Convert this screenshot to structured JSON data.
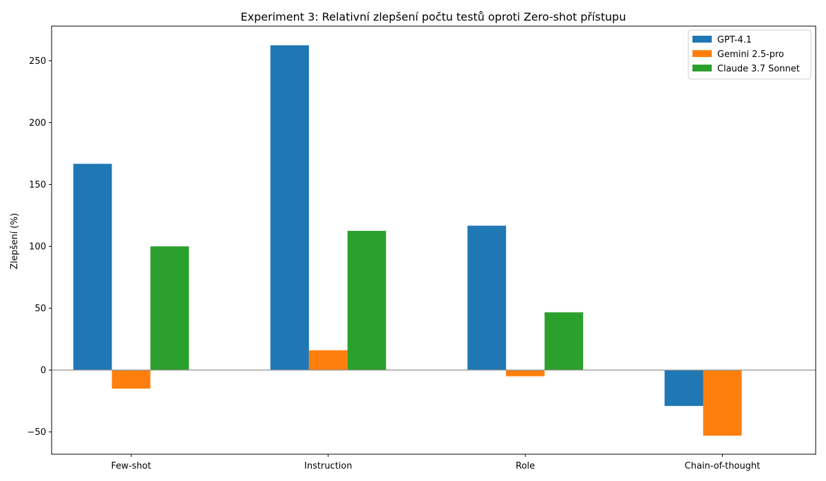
{
  "chart_data": {
    "type": "bar",
    "title": "Experiment 3: Relativní zlepšení počtu testů oproti Zero-shot přístupu",
    "xlabel": "",
    "ylabel": "Zlepšení (%)",
    "categories": [
      "Few-shot",
      "Instruction",
      "Role",
      "Chain-of-thought"
    ],
    "ylim": [
      -68,
      278
    ],
    "yticks": [
      -50,
      0,
      50,
      100,
      150,
      200,
      250
    ],
    "ytick_labels": [
      "−50",
      "0",
      "50",
      "100",
      "150",
      "200",
      "250"
    ],
    "series": [
      {
        "name": "GPT-4.1",
        "color": "#1f77b4",
        "values": [
          166.7,
          262.5,
          116.7,
          -29.0
        ]
      },
      {
        "name": "Gemini 2.5-pro",
        "color": "#ff7f0e",
        "values": [
          -15.0,
          16.0,
          -5.0,
          -53.0
        ]
      },
      {
        "name": "Claude 3.7 Sonnet",
        "color": "#2ca02c",
        "values": [
          100.0,
          112.5,
          46.7,
          0.0
        ]
      }
    ],
    "zero_line": true,
    "grid": false,
    "legend_position": "top-right"
  }
}
